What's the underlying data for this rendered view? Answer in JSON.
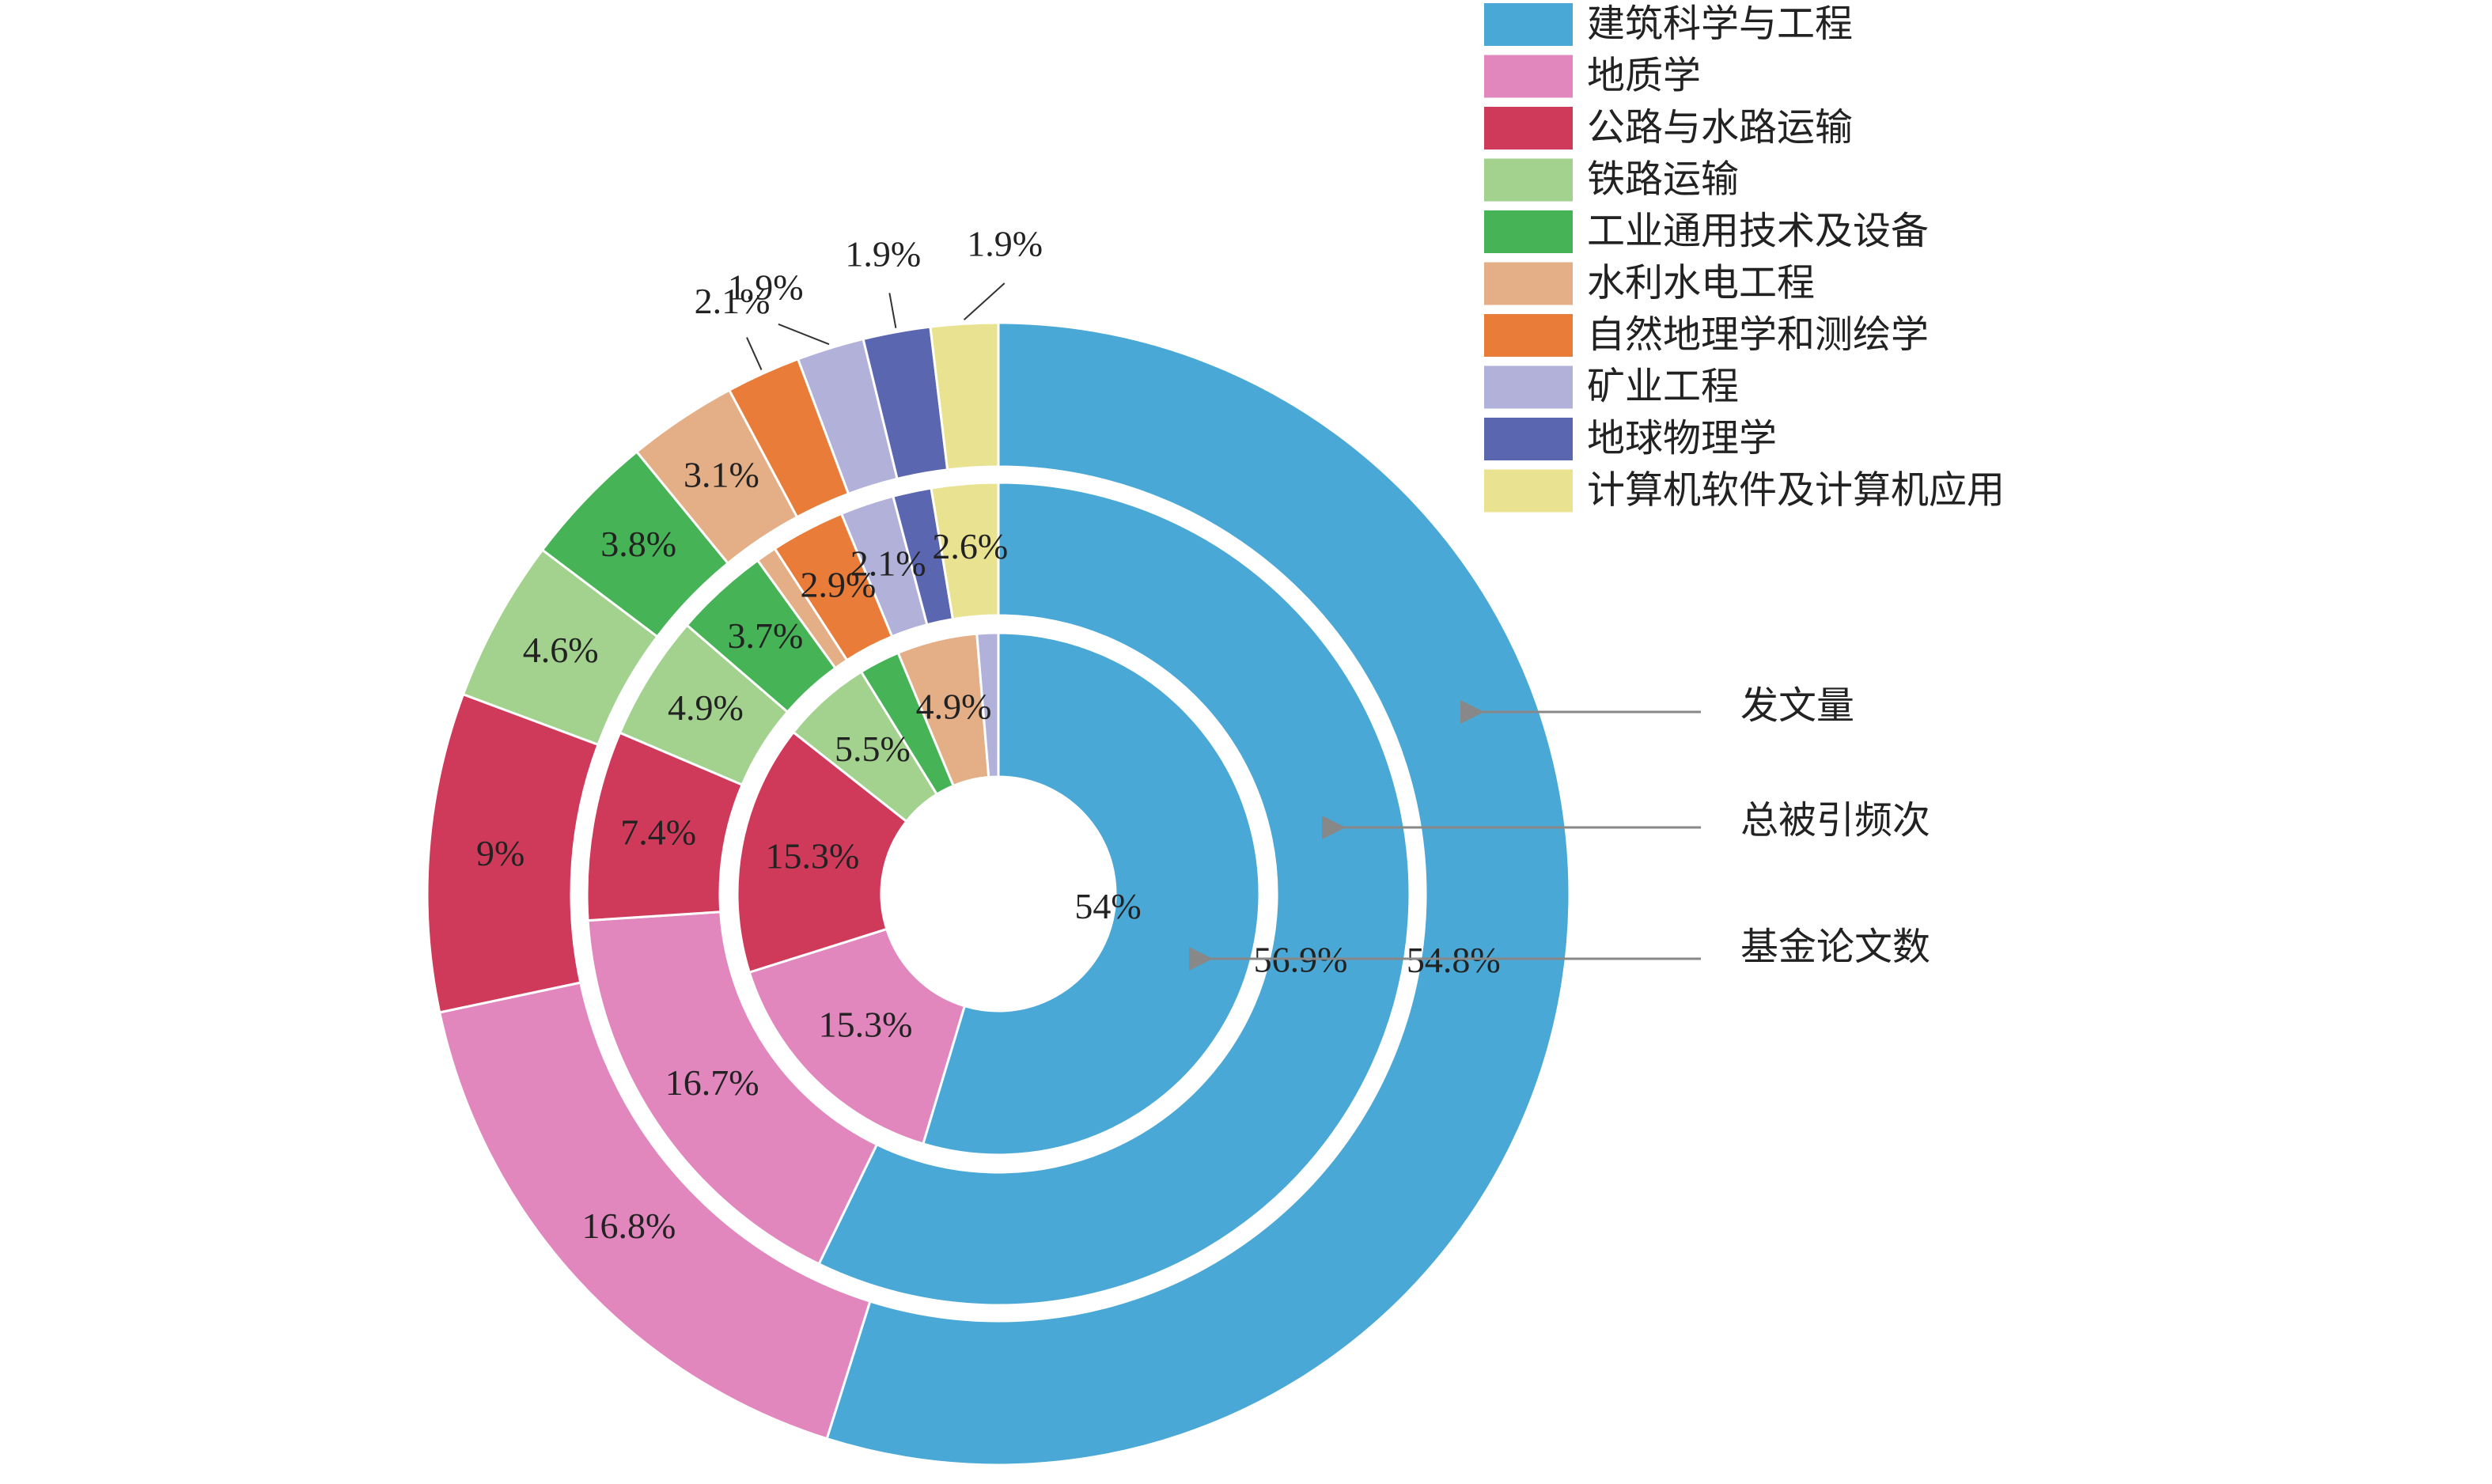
{
  "chart_data": {
    "type": "pie",
    "subtype": "nested-donut",
    "categories": [
      "建筑科学与工程",
      "地质学",
      "公路与水路运输",
      "铁路运输",
      "工业通用技术及设备",
      "水利水电工程",
      "自然地理学和测绘学",
      "矿业工程",
      "地球物理学",
      "计算机软件及计算机应用"
    ],
    "colors": [
      "#4aa8d6",
      "#e187bd",
      "#d03a5a",
      "#a3d28f",
      "#46b356",
      "#e4af86",
      "#e97c38",
      "#b1b1da",
      "#5b66b1",
      "#e9e290"
    ],
    "series": [
      {
        "name": "发文量",
        "ring": "outer",
        "values": [
          54.8,
          16.8,
          9,
          4.6,
          3.8,
          3.1,
          2.1,
          1.9,
          1.9,
          1.9
        ],
        "labels": [
          "54.8%",
          "16.8%",
          "9%",
          "4.6%",
          "3.8%",
          "3.1%",
          "2.1%",
          "1.9%",
          "1.9%",
          "1.9%"
        ]
      },
      {
        "name": "总被引频次",
        "ring": "middle",
        "values": [
          56.9,
          16.7,
          7.4,
          4.9,
          3.7,
          0.8,
          2.9,
          2.1,
          1.5,
          2.6
        ],
        "labels": [
          "56.9%",
          "16.7%",
          "7.4%",
          "4.9%",
          "3.7%",
          "",
          "2.9%",
          "2.1%",
          "",
          "2.6%"
        ]
      },
      {
        "name": "基金论文数",
        "ring": "inner",
        "values": [
          54,
          15.3,
          15.3,
          5.5,
          2.5,
          4.9,
          0,
          1.3,
          0,
          0
        ],
        "labels": [
          "54%",
          "15.3%",
          "15.3%",
          "5.5%",
          "",
          "4.9%",
          "",
          "",
          "",
          ""
        ]
      }
    ],
    "legend_position": "top-right"
  }
}
